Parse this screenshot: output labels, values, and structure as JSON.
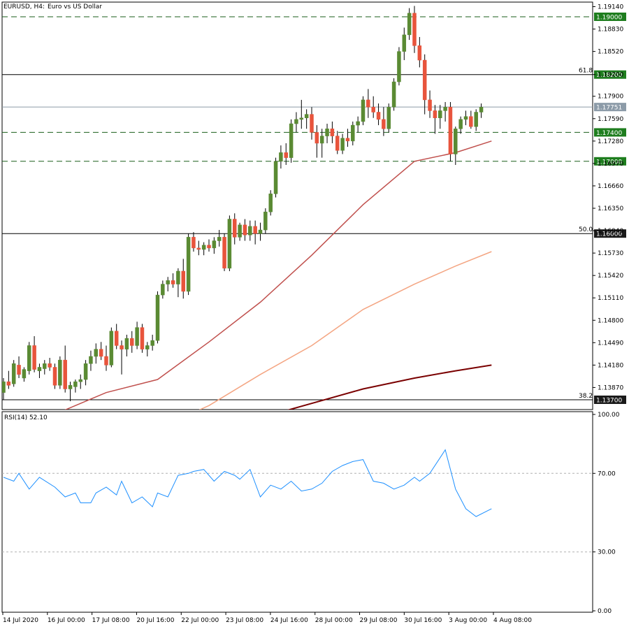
{
  "header": {
    "symbol": "EURUSD, H4:",
    "description": "Euro vs US Dollar"
  },
  "rsi_label": "RSI(14) 52.10",
  "colors": {
    "bull": "#5a8a33",
    "bear": "#e8543c",
    "ma_fast": "#c0504d",
    "ma_mid": "#f4a582",
    "ma_slow": "#7a0000",
    "rsi": "#1e90ff",
    "level_line": "#1a5e1a",
    "level_bg": "#1e7d1e"
  },
  "chart_data": [
    {
      "type": "candlestick",
      "title": "",
      "ylim": [
        1.135,
        1.192
      ],
      "y_ticks": [
        "1.19140",
        "1.18830",
        "1.18520",
        "1.18200",
        "1.17900",
        "1.17590",
        "1.17280",
        "1.16970",
        "1.16660",
        "1.16350",
        "1.16040",
        "1.15730",
        "1.15420",
        "1.15110",
        "1.14800",
        "1.14490",
        "1.14180",
        "1.13870"
      ],
      "x_ticks": [
        "14 Jul 2020",
        "16 Jul 00:00",
        "17 Jul 08:00",
        "20 Jul 16:00",
        "22 Jul 00:00",
        "23 Jul 08:00",
        "24 Jul 16:00",
        "28 Jul 00:00",
        "29 Jul 08:00",
        "30 Jul 16:00",
        "3 Aug 00:00",
        "4 Aug 08:00"
      ],
      "levels": [
        {
          "value": 1.19,
          "label": "1.19000",
          "style": "dashed"
        },
        {
          "value": 1.182,
          "label": "1.18200",
          "style": "solid",
          "fib": "61.8"
        },
        {
          "value": 1.174,
          "label": "1.17400",
          "style": "dashed"
        },
        {
          "value": 1.17,
          "label": "1.17000",
          "style": "dashed"
        },
        {
          "value": 1.16,
          "label": "1.16000",
          "style": "solid",
          "fib": "50.0"
        },
        {
          "value": 1.137,
          "label": "1.13700",
          "style": "solid",
          "fib": "38.2"
        }
      ],
      "current_price": {
        "value": 1.17751,
        "label": "1.17751"
      },
      "candles": [
        [
          1.138,
          1.14,
          1.137,
          1.1395
        ],
        [
          1.1395,
          1.141,
          1.1385,
          1.139
        ],
        [
          1.1392,
          1.1425,
          1.1388,
          1.142
        ],
        [
          1.1418,
          1.143,
          1.14,
          1.1405
        ],
        [
          1.14,
          1.1415,
          1.1395,
          1.1412
        ],
        [
          1.141,
          1.145,
          1.1405,
          1.1445
        ],
        [
          1.1445,
          1.1458,
          1.1408,
          1.1412
        ],
        [
          1.141,
          1.142,
          1.14,
          1.1415
        ],
        [
          1.1413,
          1.1425,
          1.1405,
          1.142
        ],
        [
          1.142,
          1.1428,
          1.141,
          1.1415
        ],
        [
          1.1415,
          1.142,
          1.1385,
          1.139
        ],
        [
          1.139,
          1.143,
          1.1385,
          1.1425
        ],
        [
          1.1425,
          1.1445,
          1.138,
          1.1385
        ],
        [
          1.1385,
          1.1395,
          1.1368,
          1.139
        ],
        [
          1.1388,
          1.1398,
          1.138,
          1.1395
        ],
        [
          1.1395,
          1.1405,
          1.1385,
          1.1398
        ],
        [
          1.1398,
          1.1425,
          1.139,
          1.142
        ],
        [
          1.142,
          1.1438,
          1.141,
          1.143
        ],
        [
          1.143,
          1.1448,
          1.142,
          1.144
        ],
        [
          1.144,
          1.145,
          1.1425,
          1.143
        ],
        [
          1.143,
          1.1445,
          1.141,
          1.1418
        ],
        [
          1.1418,
          1.147,
          1.1415,
          1.1465
        ],
        [
          1.1465,
          1.1475,
          1.144,
          1.1445
        ],
        [
          1.1445,
          1.1452,
          1.1405,
          1.144
        ],
        [
          1.144,
          1.146,
          1.143,
          1.1455
        ],
        [
          1.1455,
          1.1465,
          1.1435,
          1.1445
        ],
        [
          1.1445,
          1.1478,
          1.144,
          1.147
        ],
        [
          1.147,
          1.1475,
          1.1435,
          1.144
        ],
        [
          1.144,
          1.145,
          1.143,
          1.1445
        ],
        [
          1.1445,
          1.146,
          1.1438,
          1.1452
        ],
        [
          1.1452,
          1.152,
          1.1448,
          1.1515
        ],
        [
          1.1515,
          1.1535,
          1.151,
          1.153
        ],
        [
          1.153,
          1.154,
          1.152,
          1.1535
        ],
        [
          1.1535,
          1.1545,
          1.1525,
          1.153
        ],
        [
          1.153,
          1.1552,
          1.1512,
          1.1548
        ],
        [
          1.1548,
          1.1565,
          1.151,
          1.152
        ],
        [
          1.152,
          1.16,
          1.1515,
          1.1595
        ],
        [
          1.1595,
          1.1602,
          1.1575,
          1.158
        ],
        [
          1.158,
          1.159,
          1.157,
          1.1578
        ],
        [
          1.1578,
          1.1588,
          1.157,
          1.1584
        ],
        [
          1.1584,
          1.1592,
          1.1575,
          1.158
        ],
        [
          1.158,
          1.1595,
          1.1572,
          1.159
        ],
        [
          1.159,
          1.1605,
          1.1582,
          1.1595
        ],
        [
          1.1595,
          1.16,
          1.1548,
          1.1552
        ],
        [
          1.1552,
          1.1625,
          1.1548,
          1.162
        ],
        [
          1.162,
          1.1628,
          1.1585,
          1.1595
        ],
        [
          1.1595,
          1.1615,
          1.159,
          1.1612
        ],
        [
          1.1612,
          1.162,
          1.159,
          1.1598
        ],
        [
          1.1598,
          1.1618,
          1.159,
          1.161
        ],
        [
          1.161,
          1.1618,
          1.1585,
          1.16
        ],
        [
          1.16,
          1.1615,
          1.159,
          1.1605
        ],
        [
          1.1605,
          1.1635,
          1.16,
          1.163
        ],
        [
          1.163,
          1.166,
          1.1625,
          1.1655
        ],
        [
          1.1655,
          1.1705,
          1.165,
          1.17
        ],
        [
          1.17,
          1.1722,
          1.169,
          1.1712
        ],
        [
          1.1712,
          1.1725,
          1.1695,
          1.1705
        ],
        [
          1.1705,
          1.1758,
          1.1698,
          1.1752
        ],
        [
          1.1752,
          1.1768,
          1.174,
          1.1758
        ],
        [
          1.1758,
          1.1785,
          1.1745,
          1.176
        ],
        [
          1.176,
          1.1772,
          1.1745,
          1.1765
        ],
        [
          1.1765,
          1.1775,
          1.173,
          1.174
        ],
        [
          1.174,
          1.175,
          1.1705,
          1.1725
        ],
        [
          1.1725,
          1.1745,
          1.1705,
          1.1735
        ],
        [
          1.1735,
          1.1752,
          1.1725,
          1.1745
        ],
        [
          1.1745,
          1.1755,
          1.1725,
          1.1735
        ],
        [
          1.1735,
          1.1742,
          1.171,
          1.1715
        ],
        [
          1.1715,
          1.1738,
          1.171,
          1.1732
        ],
        [
          1.1732,
          1.1745,
          1.172,
          1.1728
        ],
        [
          1.1728,
          1.1755,
          1.1722,
          1.175
        ],
        [
          1.175,
          1.1762,
          1.174,
          1.1755
        ],
        [
          1.1755,
          1.179,
          1.175,
          1.1785
        ],
        [
          1.1785,
          1.18,
          1.176,
          1.1775
        ],
        [
          1.1775,
          1.179,
          1.176,
          1.1768
        ],
        [
          1.1768,
          1.178,
          1.175,
          1.1758
        ],
        [
          1.1758,
          1.1775,
          1.1735,
          1.1745
        ],
        [
          1.1745,
          1.178,
          1.174,
          1.1775
        ],
        [
          1.1775,
          1.1815,
          1.177,
          1.181
        ],
        [
          1.181,
          1.1858,
          1.1805,
          1.1852
        ],
        [
          1.1852,
          1.1885,
          1.184,
          1.1875
        ],
        [
          1.1875,
          1.1912,
          1.1868,
          1.1905
        ],
        [
          1.1905,
          1.1915,
          1.185,
          1.186
        ],
        [
          1.186,
          1.1872,
          1.183,
          1.184
        ],
        [
          1.184,
          1.1848,
          1.1765,
          1.1785
        ],
        [
          1.1785,
          1.1798,
          1.176,
          1.177
        ],
        [
          1.177,
          1.1778,
          1.1738,
          1.176
        ],
        [
          1.176,
          1.1778,
          1.1745,
          1.177
        ],
        [
          1.177,
          1.1782,
          1.1755,
          1.1775
        ],
        [
          1.1775,
          1.1782,
          1.17,
          1.171
        ],
        [
          1.171,
          1.1748,
          1.1695,
          1.1745
        ],
        [
          1.1745,
          1.1762,
          1.1738,
          1.1758
        ],
        [
          1.1758,
          1.177,
          1.175,
          1.1762
        ],
        [
          1.1762,
          1.177,
          1.1745,
          1.1748
        ],
        [
          1.1748,
          1.1772,
          1.1742,
          1.1768
        ],
        [
          1.1768,
          1.178,
          1.176,
          1.1775
        ]
      ],
      "moving_averages": [
        {
          "x": [
            0,
            20,
            30,
            40,
            50,
            60,
            70,
            80,
            88,
            95
          ],
          "y": [
            1.132,
            1.138,
            1.1398,
            1.145,
            1.1505,
            1.157,
            1.164,
            1.17,
            1.1712,
            1.1728
          ]
        },
        {
          "x": [
            0,
            20,
            30,
            40,
            50,
            60,
            70,
            80,
            88,
            95
          ],
          "y": [
            1.124,
            1.129,
            1.133,
            1.1362,
            1.1405,
            1.1445,
            1.1495,
            1.153,
            1.1555,
            1.1575
          ]
        },
        {
          "x": [
            0,
            20,
            30,
            40,
            50,
            60,
            70,
            80,
            88,
            95
          ],
          "y": [
            1.12,
            1.125,
            1.129,
            1.132,
            1.1345,
            1.1365,
            1.1385,
            1.14,
            1.141,
            1.1418
          ]
        }
      ]
    },
    {
      "type": "line",
      "title": "",
      "ylim": [
        0,
        100
      ],
      "y_ticks": [
        "100.00",
        "70.00",
        "30.00",
        "0.00"
      ],
      "reference_levels": [
        70,
        30
      ],
      "x": [
        0,
        2,
        3,
        5,
        7,
        10,
        12,
        14,
        15,
        17,
        18,
        20,
        22,
        23,
        25,
        27,
        29,
        30,
        32,
        34,
        36,
        37,
        39,
        41,
        43,
        45,
        46,
        48,
        50,
        52,
        54,
        56,
        58,
        60,
        62,
        64,
        66,
        68,
        70,
        72,
        74,
        76,
        78,
        80,
        81,
        83,
        85,
        86,
        88,
        90,
        92,
        95
      ],
      "values": [
        68,
        66,
        70,
        62,
        68,
        63,
        58,
        60,
        55,
        55,
        60,
        63,
        59,
        66,
        55,
        58,
        53,
        60,
        58,
        69,
        70,
        71,
        72,
        66,
        71,
        69,
        67,
        72,
        58,
        64,
        62,
        66,
        61,
        62,
        65,
        71,
        74,
        76,
        77,
        66,
        65,
        62,
        64,
        68,
        66,
        70,
        78,
        82,
        62,
        52,
        48,
        52
      ]
    }
  ]
}
